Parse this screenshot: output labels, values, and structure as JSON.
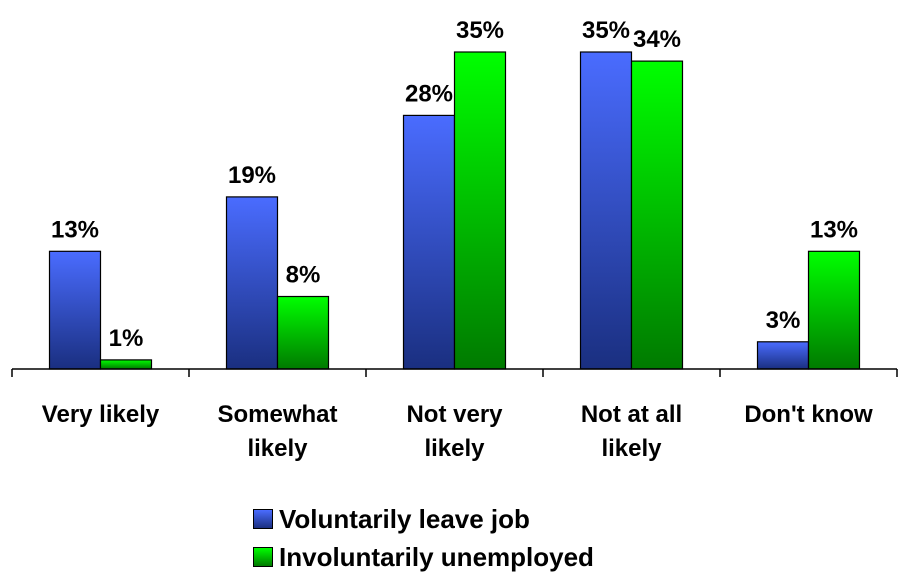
{
  "chart_data": {
    "type": "bar",
    "categories": [
      [
        "Very likely"
      ],
      [
        "Somewhat",
        "likely"
      ],
      [
        "Not very",
        "likely"
      ],
      [
        "Not at all",
        "likely"
      ],
      [
        "Don't know"
      ]
    ],
    "series": [
      {
        "name": "Voluntarily leave job",
        "values": [
          13,
          19,
          28,
          35,
          3
        ],
        "labels": [
          "13%",
          "19%",
          "28%",
          "35%",
          "3%"
        ],
        "color_top": "#4a6cff",
        "color_bottom": "#1a2f80"
      },
      {
        "name": "Involuntarily unemployed",
        "values": [
          1,
          8,
          35,
          34,
          13
        ],
        "labels": [
          "1%",
          "8%",
          "35%",
          "34%",
          "13%"
        ],
        "color_top": "#00ff00",
        "color_bottom": "#007a00"
      }
    ],
    "ylim": [
      0,
      35
    ],
    "grid": false,
    "legend_position": "bottom"
  }
}
